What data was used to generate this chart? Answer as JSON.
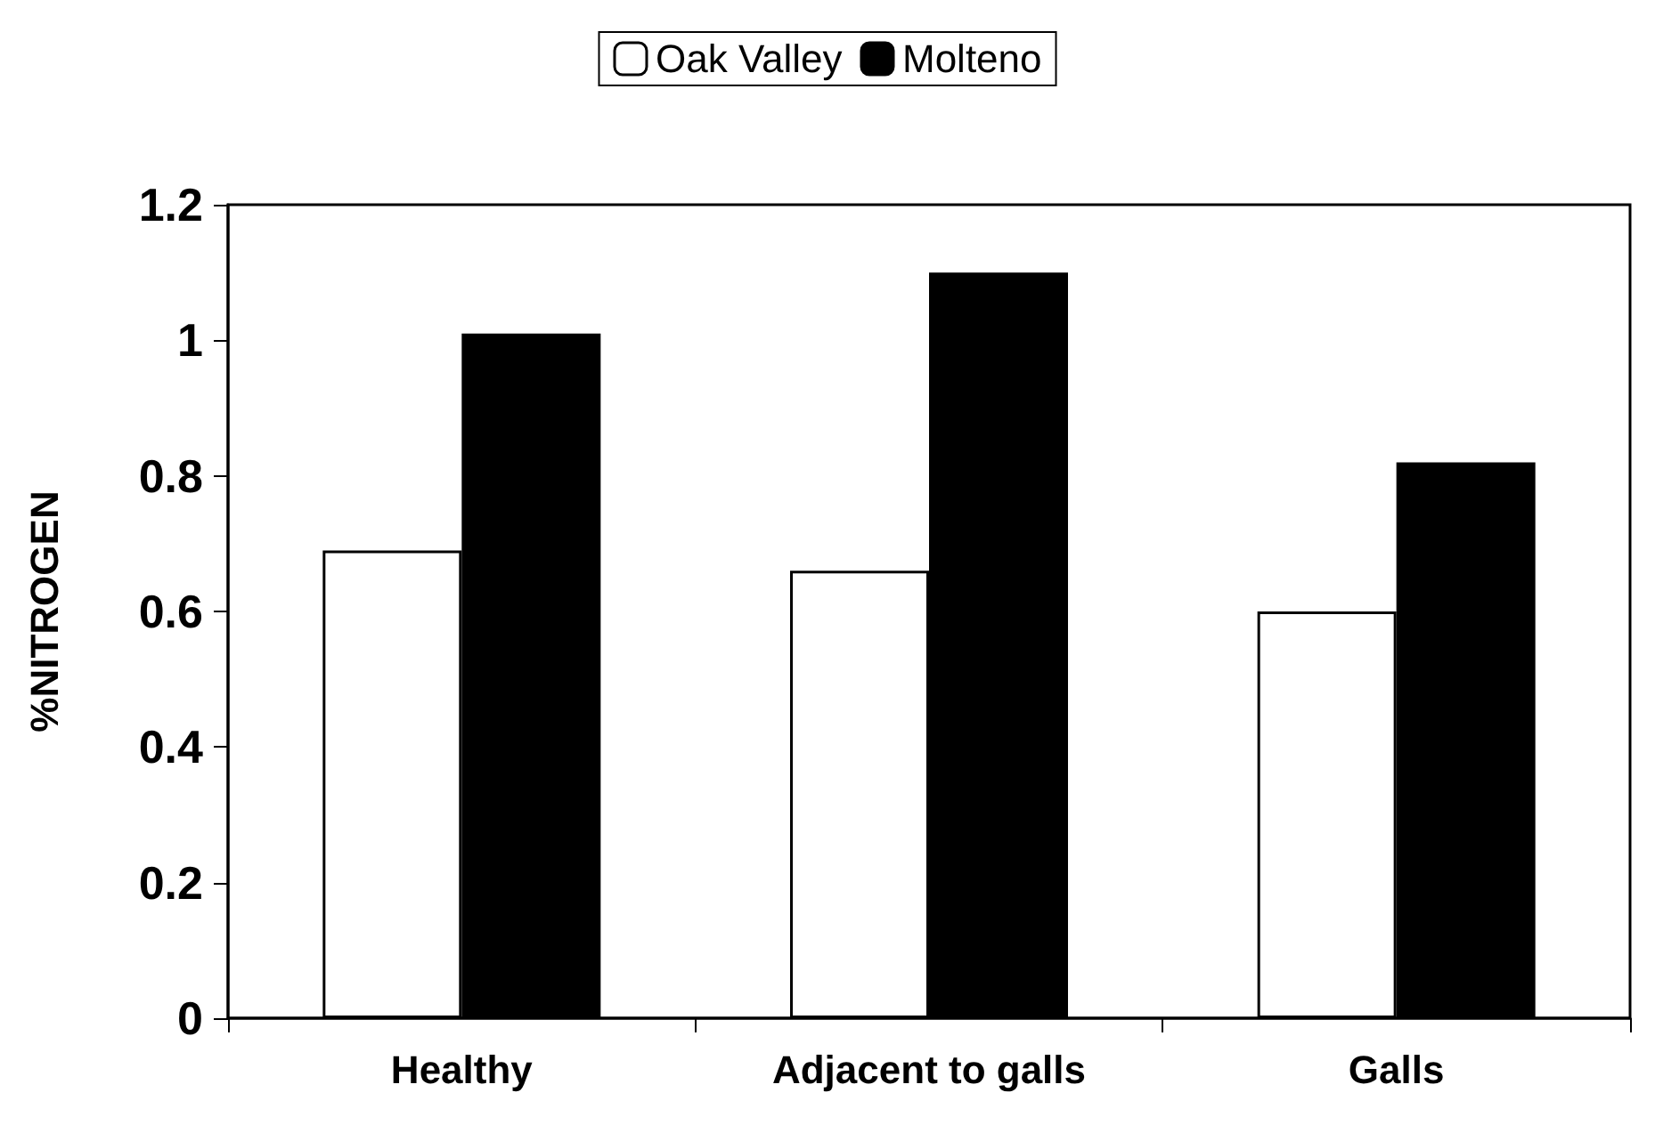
{
  "chart_data": {
    "type": "bar",
    "ylabel": "%NITROGEN",
    "categories": [
      "Healthy",
      "Adjacent to galls",
      "Galls"
    ],
    "series": [
      {
        "name": "Oak Valley",
        "color": "#ffffff",
        "values": [
          0.69,
          0.66,
          0.6
        ]
      },
      {
        "name": "Molteno",
        "color": "#000000",
        "values": [
          1.01,
          1.1,
          0.82
        ]
      }
    ],
    "ylim": [
      0,
      1.2
    ],
    "yticks": [
      0,
      0.2,
      0.4,
      0.6,
      0.8,
      1,
      1.2
    ],
    "grid": false,
    "legend": "top"
  }
}
